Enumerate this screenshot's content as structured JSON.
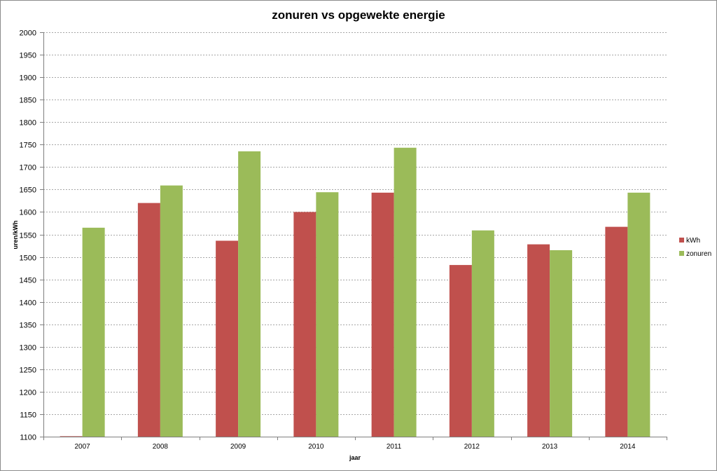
{
  "colors": {
    "kwh": "#c0504d",
    "zonuren": "#9bbb59",
    "gridline": "#a6a6a6",
    "axis": "#7f7f7f"
  },
  "chart_data": {
    "type": "bar",
    "title": "zonuren vs opgewekte energie",
    "xlabel": "jaar",
    "ylabel": "uren/kWh",
    "ylim": [
      1100,
      2000
    ],
    "ytick_step": 50,
    "grid": true,
    "legend_position": "right",
    "categories": [
      "2007",
      "2008",
      "2009",
      "2010",
      "2011",
      "2012",
      "2013",
      "2014"
    ],
    "series": [
      {
        "name": "kWh",
        "color": "#c0504d",
        "values": [
          1101,
          1620,
          1536,
          1600,
          1643,
          1482,
          1528,
          1567
        ]
      },
      {
        "name": "zonuren",
        "color": "#9bbb59",
        "values": [
          1565,
          1659,
          1735,
          1644,
          1743,
          1559,
          1515,
          1643
        ]
      }
    ]
  }
}
